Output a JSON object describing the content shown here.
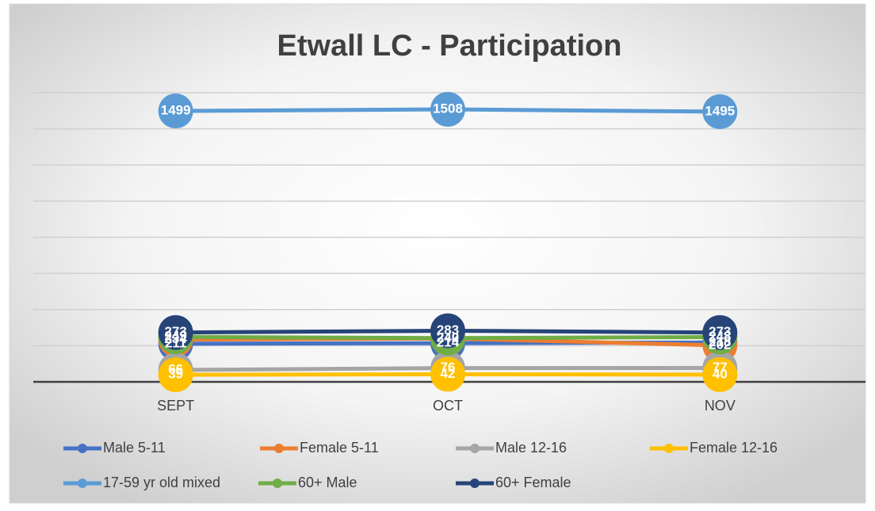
{
  "chart_data": {
    "type": "line",
    "title": "Etwall LC - Participation",
    "categories": [
      "SEPT",
      "OCT",
      "NOV"
    ],
    "series": [
      {
        "name": "Male 5-11",
        "color": "#4472c4",
        "values": [
          211,
          214,
          218
        ]
      },
      {
        "name": "Female 5-11",
        "color": "#ed7d31",
        "values": [
          234,
          240,
          202
        ]
      },
      {
        "name": "Male 12-16",
        "color": "#a5a5a5",
        "values": [
          66,
          76,
          77
        ]
      },
      {
        "name": "Female 12-16",
        "color": "#ffc000",
        "values": [
          39,
          42,
          40
        ]
      },
      {
        "name": "17-59 yr old mixed",
        "color": "#5b9bd5",
        "values": [
          1499,
          1508,
          1495
        ]
      },
      {
        "name": "60+ Male",
        "color": "#70ad47",
        "values": [
          249,
          242,
          248
        ]
      },
      {
        "name": "60+ Female",
        "color": "#264478",
        "values": [
          273,
          283,
          273
        ]
      }
    ],
    "ylim": [
      0,
      1600
    ],
    "yticks": [
      0,
      200,
      400,
      600,
      800,
      1000,
      1200,
      1400,
      1600
    ],
    "grid": true
  }
}
